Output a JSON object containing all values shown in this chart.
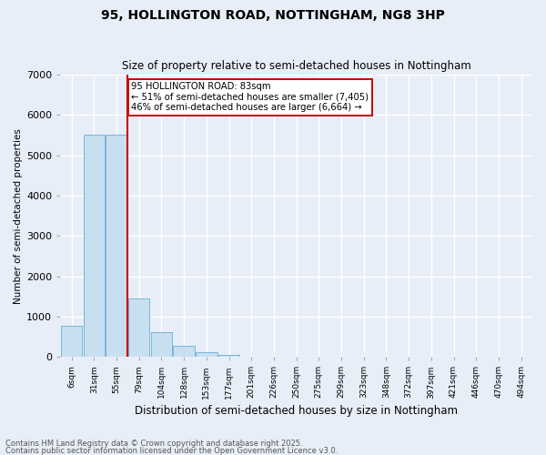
{
  "title1": "95, HOLLINGTON ROAD, NOTTINGHAM, NG8 3HP",
  "title2": "Size of property relative to semi-detached houses in Nottingham",
  "xlabel": "Distribution of semi-detached houses by size in Nottingham",
  "ylabel": "Number of semi-detached properties",
  "annotation_title": "95 HOLLINGTON ROAD: 83sqm",
  "annotation_line1": "← 51% of semi-detached houses are smaller (7,405)",
  "annotation_line2": "46% of semi-detached houses are larger (6,664) →",
  "property_size_bin": 3,
  "footer1": "Contains HM Land Registry data © Crown copyright and database right 2025.",
  "footer2": "Contains public sector information licensed under the Open Government Licence v3.0.",
  "bar_color": "#c8dff0",
  "bar_edge_color": "#6aaed6",
  "vline_color": "#cc0000",
  "background_color": "#e8eef8",
  "grid_color": "#ffffff",
  "categories": [
    "6sqm",
    "31sqm",
    "55sqm",
    "79sqm",
    "104sqm",
    "128sqm",
    "153sqm",
    "177sqm",
    "201sqm",
    "226sqm",
    "250sqm",
    "275sqm",
    "299sqm",
    "323sqm",
    "348sqm",
    "372sqm",
    "397sqm",
    "421sqm",
    "446sqm",
    "470sqm",
    "494sqm"
  ],
  "values": [
    780,
    5520,
    5510,
    1450,
    620,
    280,
    110,
    50,
    10,
    0,
    0,
    0,
    0,
    0,
    0,
    0,
    0,
    0,
    0,
    0,
    0
  ],
  "ylim": [
    0,
    7000
  ],
  "yticks": [
    0,
    1000,
    2000,
    3000,
    4000,
    5000,
    6000,
    7000
  ]
}
